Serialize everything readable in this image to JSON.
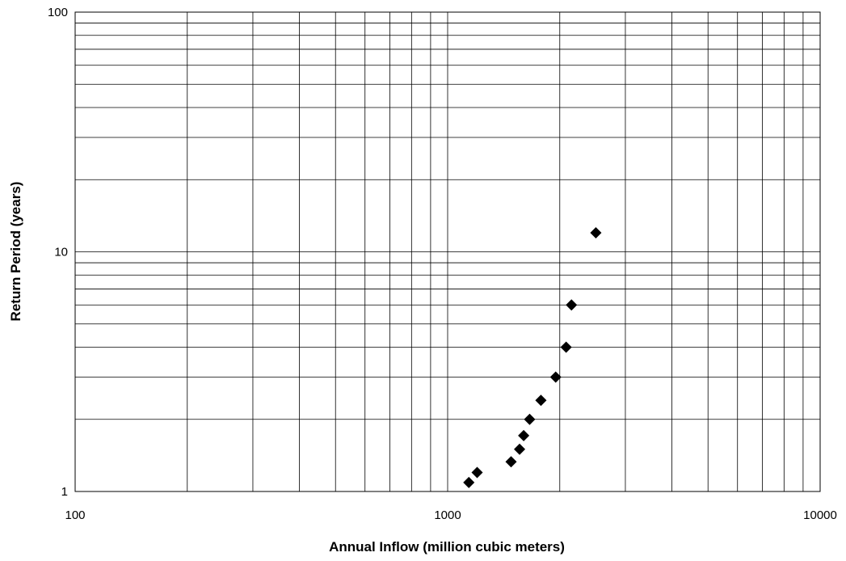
{
  "chart_data": {
    "type": "scatter",
    "title": "",
    "xlabel": "Annual Inflow (million cubic meters)",
    "ylabel": "Return Period (years)",
    "xscale": "log",
    "yscale": "log",
    "xlim": [
      100,
      10000
    ],
    "ylim": [
      1,
      100
    ],
    "grid": true,
    "legend": "none",
    "x_tick_labels": [
      "100",
      "1000",
      "10000"
    ],
    "y_tick_labels": [
      "1",
      "10",
      "100"
    ],
    "marker": "diamond",
    "marker_color": "#000000",
    "series": [
      {
        "x": [
          1140,
          1200,
          1480,
          1560,
          1600,
          1660,
          1780,
          1950,
          2080,
          2150,
          2500
        ],
        "y": [
          1.09,
          1.2,
          1.33,
          1.5,
          1.71,
          2.0,
          2.4,
          3.0,
          4.0,
          6.0,
          12.0
        ]
      }
    ]
  }
}
